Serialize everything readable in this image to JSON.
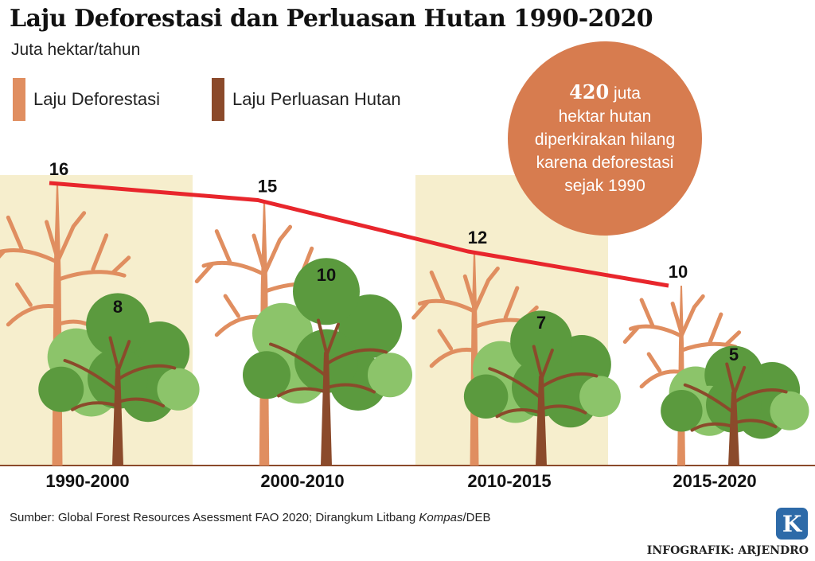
{
  "header": {
    "title": "Laju Deforestasi dan Perluasan Hutan 1990-2020",
    "subtitle": "Juta hektar/tahun"
  },
  "legend": [
    {
      "label": "Laju Deforestasi",
      "color": "#e08e60"
    },
    {
      "label": "Laju Perluasan Hutan",
      "color": "#8b4a2b"
    }
  ],
  "callout": {
    "number": "420",
    "text_1": "juta",
    "text_2": "hektar hutan",
    "text_3": "diperkirakan hilang",
    "text_4": "karena deforestasi",
    "text_5": "sejak 1990"
  },
  "chart_data": {
    "type": "line",
    "categories": [
      "1990-2000",
      "2000-2010",
      "2010-2015",
      "2015-2020"
    ],
    "series": [
      {
        "name": "Laju Deforestasi",
        "values": [
          16,
          15,
          12,
          10
        ]
      },
      {
        "name": "Laju Perluasan Hutan",
        "values": [
          8,
          10,
          7,
          5
        ]
      }
    ],
    "unit": "Juta hektar/tahun",
    "colors": {
      "line": "#e8262c",
      "dead_tree": "#e08e60",
      "trunk": "#8b4a2b",
      "leaf": "#5b9a3e",
      "leaf_light": "#8cc46a",
      "band": "#f6eecd"
    }
  },
  "footer": {
    "source_prefix": "Sumber: Global Forest Resources Asessment FAO 2020; Dirangkum Litbang ",
    "source_italic": "Kompas",
    "source_suffix": "/DEB",
    "credit": "INFOGRAFIK: ARJENDRO",
    "logo_letter": "K"
  }
}
